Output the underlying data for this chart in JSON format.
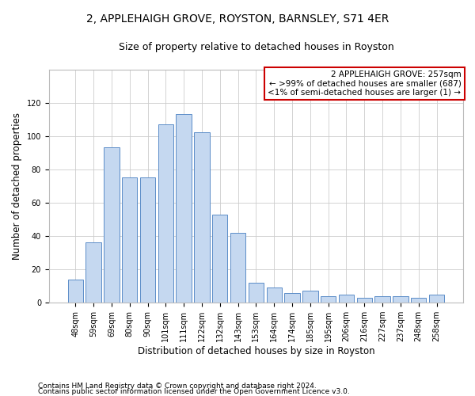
{
  "title": "2, APPLEHAIGH GROVE, ROYSTON, BARNSLEY, S71 4ER",
  "subtitle": "Size of property relative to detached houses in Royston",
  "xlabel": "Distribution of detached houses by size in Royston",
  "ylabel": "Number of detached properties",
  "categories": [
    "48sqm",
    "59sqm",
    "69sqm",
    "80sqm",
    "90sqm",
    "101sqm",
    "111sqm",
    "122sqm",
    "132sqm",
    "143sqm",
    "153sqm",
    "164sqm",
    "174sqm",
    "185sqm",
    "195sqm",
    "206sqm",
    "216sqm",
    "227sqm",
    "237sqm",
    "248sqm",
    "258sqm"
  ],
  "values": [
    14,
    36,
    93,
    75,
    75,
    107,
    113,
    102,
    53,
    42,
    12,
    9,
    6,
    7,
    4,
    5,
    3,
    4,
    4,
    3,
    5
  ],
  "bar_color": "#c5d8f0",
  "bar_edge_color": "#5b8dc8",
  "annotation_box_color": "#ffffff",
  "annotation_box_edge_color": "#cc0000",
  "annotation_lines": [
    "2 APPLEHAIGH GROVE: 257sqm",
    "← >99% of detached houses are smaller (687)",
    "<1% of semi-detached houses are larger (1) →"
  ],
  "ylim": [
    0,
    140
  ],
  "yticks": [
    0,
    20,
    40,
    60,
    80,
    100,
    120
  ],
  "footer_line1": "Contains HM Land Registry data © Crown copyright and database right 2024.",
  "footer_line2": "Contains public sector information licensed under the Open Government Licence v3.0.",
  "background_color": "#ffffff",
  "grid_color": "#cccccc",
  "title_fontsize": 10,
  "subtitle_fontsize": 9,
  "axis_label_fontsize": 8.5,
  "tick_fontsize": 7,
  "annotation_fontsize": 7.5,
  "footer_fontsize": 6.5
}
